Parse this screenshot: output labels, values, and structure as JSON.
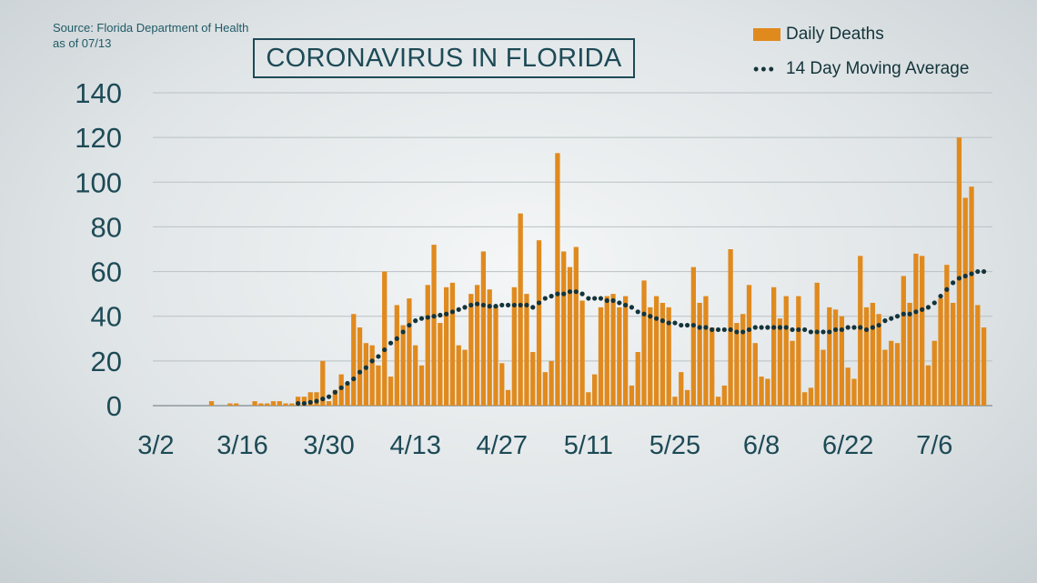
{
  "source_line1": "Source: Florida Department of Health",
  "source_line2": "as of 07/13",
  "title": "CORONAVIRUS IN FLORIDA",
  "legend": {
    "bars_label": "Daily Deaths",
    "avg_label": "14 Day Moving Average"
  },
  "colors": {
    "bar": "#e08a1e",
    "avg": "#14343b",
    "axis_text": "#1d4a56",
    "grid": "#b9c1c4"
  },
  "chart_data": {
    "type": "bar",
    "title": "CORONAVIRUS IN FLORIDA",
    "xlabel": "",
    "ylabel": "",
    "ylim": [
      0,
      140
    ],
    "yticks": [
      0,
      20,
      40,
      60,
      80,
      100,
      120,
      140
    ],
    "x_start": "3/2",
    "xticks": [
      {
        "label": "3/2",
        "day": 0
      },
      {
        "label": "3/16",
        "day": 14
      },
      {
        "label": "3/30",
        "day": 28
      },
      {
        "label": "4/13",
        "day": 42
      },
      {
        "label": "4/27",
        "day": 56
      },
      {
        "label": "5/11",
        "day": 70
      },
      {
        "label": "5/25",
        "day": 84
      },
      {
        "label": "6/8",
        "day": 98
      },
      {
        "label": "6/22",
        "day": 112
      },
      {
        "label": "7/6",
        "day": 126
      }
    ],
    "grid": true,
    "legend_position": "top-right",
    "series": [
      {
        "name": "Daily Deaths",
        "type": "bar",
        "values": [
          0,
          0,
          0,
          0,
          0,
          0,
          0,
          0,
          0,
          2,
          0,
          0,
          1,
          1,
          0,
          0,
          2,
          1,
          1,
          2,
          2,
          1,
          1,
          4,
          4,
          6,
          6,
          20,
          2,
          7,
          14,
          10,
          41,
          35,
          28,
          27,
          18,
          60,
          13,
          45,
          36,
          48,
          27,
          18,
          54,
          72,
          37,
          53,
          55,
          27,
          25,
          50,
          54,
          69,
          52,
          45,
          19,
          7,
          53,
          86,
          50,
          24,
          74,
          15,
          20,
          113,
          69,
          62,
          71,
          47,
          6,
          14,
          44,
          49,
          50,
          44,
          49,
          9,
          24,
          56,
          44,
          49,
          46,
          44,
          4,
          15,
          7,
          62,
          46,
          49,
          35,
          4,
          9,
          70,
          37,
          41,
          54,
          28,
          13,
          12,
          53,
          39,
          49,
          29,
          49,
          6,
          8,
          55,
          25,
          44,
          43,
          40,
          17,
          12,
          67,
          44,
          46,
          41,
          25,
          29,
          28,
          58,
          46,
          68,
          67,
          18,
          29,
          48,
          63,
          46,
          120,
          93,
          98,
          45,
          35
        ]
      },
      {
        "name": "14 Day Moving Average",
        "type": "line",
        "values": [
          null,
          null,
          null,
          null,
          null,
          null,
          null,
          null,
          null,
          null,
          null,
          null,
          null,
          null,
          null,
          null,
          null,
          null,
          null,
          null,
          null,
          null,
          null,
          1,
          1,
          1.5,
          2,
          3,
          4,
          6,
          8,
          10,
          12,
          15,
          17,
          20,
          22,
          25,
          28,
          30,
          33,
          36,
          38,
          39,
          39.5,
          40,
          40.5,
          41,
          42,
          43,
          44,
          45,
          45.5,
          45,
          44.5,
          44.5,
          45,
          45,
          45,
          45,
          45,
          44,
          46,
          48,
          49,
          50,
          50,
          51,
          51,
          50,
          48,
          48,
          48,
          47,
          47,
          46,
          45,
          44,
          42,
          41,
          40,
          39,
          38,
          37,
          37,
          36,
          36,
          36,
          35,
          35,
          34,
          34,
          34,
          34,
          33,
          33,
          34,
          35,
          35,
          35,
          35,
          35,
          35,
          34,
          34,
          34,
          33,
          33,
          33,
          33,
          34,
          34,
          35,
          35,
          35,
          34,
          35,
          36,
          38,
          39,
          40,
          41,
          41,
          42,
          43,
          44,
          46,
          49,
          52,
          55,
          57,
          58,
          59,
          60,
          60
        ]
      }
    ]
  }
}
